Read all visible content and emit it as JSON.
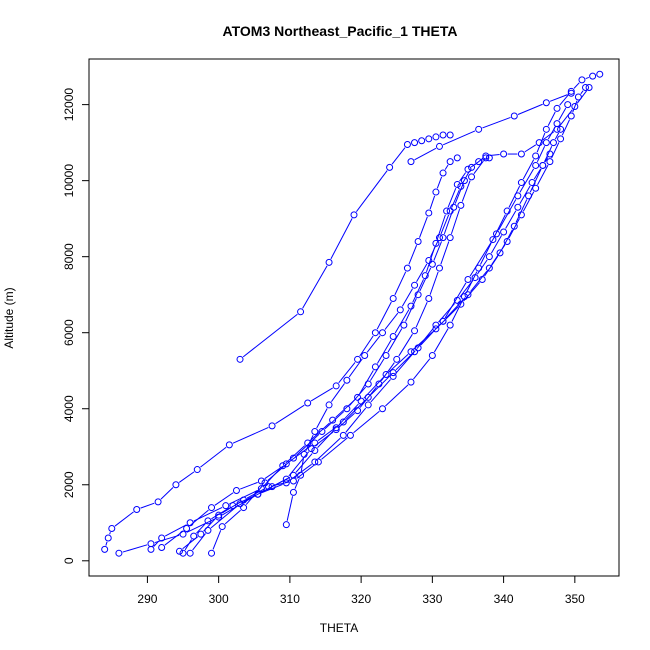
{
  "chart_data": {
    "type": "line",
    "title": "ATOM3 Northeast_Pacific_1 THETA",
    "xlabel": "THETA",
    "ylabel": "Altitude (m)",
    "xlim": [
      281.8,
      356.2
    ],
    "ylim": [
      -400,
      13200
    ],
    "x_ticks": [
      290,
      300,
      310,
      320,
      330,
      340,
      350
    ],
    "y_ticks": [
      0,
      2000,
      4000,
      6000,
      8000,
      10000,
      12000
    ],
    "series_color": "#0000ff",
    "marker": "open-circle",
    "grid": false,
    "legend": "none",
    "series": [
      {
        "x": [
          303.0,
          311.5,
          315.5,
          319.0,
          324.0,
          326.5,
          327.5,
          328.5,
          329.5,
          330.5,
          331.5,
          332.5
        ],
        "y": [
          5300,
          6550,
          7850,
          9100,
          10350,
          10950,
          11000,
          11050,
          11100,
          11150,
          11200,
          11200
        ]
      },
      {
        "x": [
          284.0,
          284.5,
          285.0,
          288.5,
          291.5,
          294.0,
          297.0,
          301.5,
          307.5,
          312.5,
          316.5,
          319.5,
          322.0,
          324.5,
          326.5,
          328.0,
          329.5,
          330.5,
          331.5,
          332.5,
          333.5
        ],
        "y": [
          300,
          600,
          850,
          1350,
          1550,
          2000,
          2400,
          3050,
          3550,
          4150,
          4600,
          5300,
          6000,
          6900,
          7700,
          8400,
          9150,
          9700,
          10200,
          10500,
          10600
        ]
      },
      {
        "x": [
          286.0,
          290.5,
          295.0,
          300.0,
          305.5,
          309.5,
          313.0,
          316.5,
          319.5,
          322.5,
          325.0,
          327.5,
          329.5,
          331.0,
          332.5,
          334.0,
          335.5,
          337.5
        ],
        "y": [
          200,
          450,
          700,
          1150,
          1750,
          2150,
          2950,
          3450,
          3950,
          4650,
          5300,
          6050,
          6900,
          7700,
          8500,
          9350,
          10100,
          10600
        ]
      },
      {
        "x": [
          290.5,
          292.0,
          296.0,
          301.0,
          306.0,
          309.0,
          312.5,
          316.0,
          319.5,
          322.0,
          324.5,
          327.0,
          329.0,
          330.5,
          332.0,
          333.5,
          335.0,
          336.5,
          338.0
        ],
        "y": [
          300,
          600,
          1000,
          1450,
          1900,
          2500,
          3100,
          3700,
          4300,
          5100,
          5900,
          6700,
          7500,
          8350,
          9200,
          9900,
          10300,
          10500,
          10600
        ]
      },
      {
        "x": [
          295.0,
          296.5,
          298.5,
          302.0,
          305.5,
          309.5,
          313.5,
          317.5,
          321.0,
          324.5,
          327.5,
          330.5,
          333.5,
          336.0,
          338.0,
          340.0,
          342.0,
          344.0,
          345.5,
          346.5
        ],
        "y": [
          200,
          650,
          1050,
          1450,
          1750,
          2050,
          2600,
          3300,
          4100,
          4850,
          5500,
          6200,
          6850,
          7450,
          8000,
          8650,
          9300,
          9950,
          10400,
          10700
        ]
      },
      {
        "x": [
          299.0,
          300.5,
          303.5,
          306.5,
          310.5,
          314.5,
          318.0,
          321.0,
          323.5,
          326.0,
          328.0,
          330.0,
          331.5,
          333.0,
          334.5
        ],
        "y": [
          200,
          900,
          1400,
          2050,
          2700,
          3400,
          4000,
          4650,
          5400,
          6200,
          7000,
          7800,
          8500,
          9300,
          10000
        ]
      },
      {
        "x": [
          309.5,
          310.5,
          311.5,
          312.0,
          313.5,
          315.5,
          318.0,
          320.5,
          323.0,
          325.5,
          327.5,
          329.5,
          331.0,
          332.5,
          334.0,
          335.5,
          337.5,
          340.0,
          342.5,
          345.0,
          347.5,
          350.0,
          352.0
        ],
        "y": [
          950,
          1800,
          2250,
          2800,
          3400,
          4100,
          4750,
          5400,
          6000,
          6600,
          7250,
          7900,
          8500,
          9200,
          9850,
          10350,
          10650,
          10700,
          10700,
          11000,
          11350,
          11950,
          12450
        ]
      },
      {
        "x": [
          296.0,
          298.5,
          303.0,
          307.5,
          310.5,
          313.5,
          316.5,
          320.0,
          323.5,
          327.0,
          330.5,
          334.0,
          337.0,
          339.5,
          341.5,
          343.5,
          345.5,
          347.0,
          348.0
        ],
        "y": [
          200,
          800,
          1500,
          1950,
          2250,
          2900,
          3500,
          4200,
          4900,
          5500,
          6100,
          6750,
          7400,
          8100,
          8800,
          9600,
          10400,
          11000,
          11350
        ]
      },
      {
        "x": [
          292.0,
          295.5,
          299.0,
          302.5,
          306.0,
          309.5,
          313.5,
          317.5,
          321.0,
          324.5,
          328.0,
          331.5,
          335.0,
          338.0,
          340.5,
          342.5,
          344.5,
          346.5,
          348.0,
          349.5,
          350.5,
          351.5
        ],
        "y": [
          350,
          850,
          1400,
          1850,
          2100,
          2550,
          3100,
          3650,
          4300,
          4950,
          5600,
          6300,
          7000,
          7700,
          8400,
          9100,
          9800,
          10500,
          11100,
          11700,
          12200,
          12450
        ]
      },
      {
        "x": [
          294.5,
          297.5,
          300.0,
          303.5,
          307.0,
          310.5,
          314.0,
          318.5,
          323.0,
          327.0,
          330.0,
          332.5,
          334.5,
          336.5,
          338.5,
          340.5,
          342.5,
          344.5,
          346.0,
          347.5,
          349.5,
          351.0,
          352.5,
          353.5
        ],
        "y": [
          250,
          700,
          1200,
          1600,
          1950,
          2100,
          2600,
          3300,
          4000,
          4700,
          5400,
          6200,
          6950,
          7700,
          8450,
          9200,
          9950,
          10650,
          11350,
          11900,
          12350,
          12650,
          12750,
          12800
        ]
      },
      {
        "x": [
          331.5,
          335.0,
          339.0,
          342.0,
          344.5,
          346.0,
          347.5,
          349.0
        ],
        "y": [
          6300,
          7400,
          8600,
          9600,
          10400,
          11000,
          11500,
          12000
        ]
      },
      {
        "x": [
          327.0,
          331.0,
          336.5,
          341.5,
          346.0,
          349.5
        ],
        "y": [
          10500,
          10900,
          11350,
          11700,
          12050,
          12300
        ]
      }
    ]
  }
}
